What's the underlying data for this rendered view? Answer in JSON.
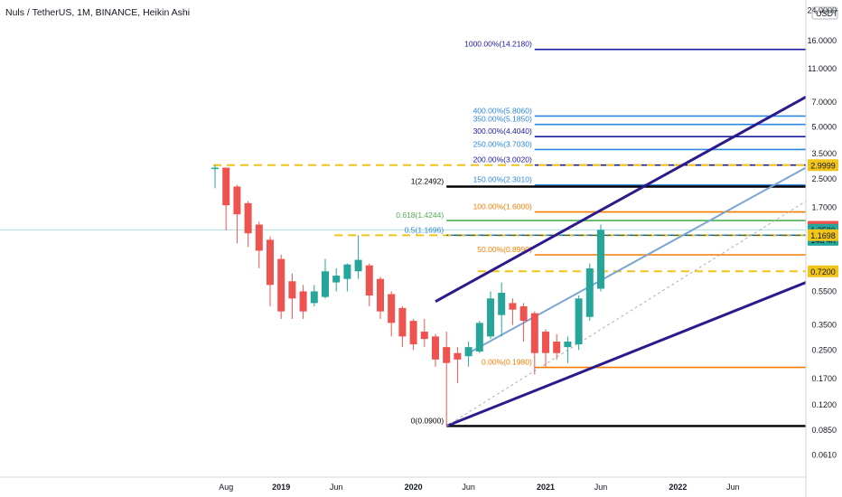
{
  "chart_title": "Nuls / TetherUS, 1M, BINANCE, Heikin Ashi",
  "currency_label": "USDT",
  "colors": {
    "up": "#26a69a",
    "down": "#ef5350",
    "yellow_dash": "#f0c419",
    "navy": "#1a1aa0",
    "steel_blue": "#79a6d2",
    "light_blue": "#2e86de",
    "orange": "#f57c00",
    "green": "#4caf50",
    "black": "#000000",
    "purple": "#2c1a8c",
    "price_line": "#a8e0e0"
  },
  "chart_data": {
    "type": "candlestick",
    "scale": "log",
    "ylim": [
      0.055,
      26
    ],
    "y_ticks": [
      {
        "value": 24.0,
        "label": "24.0000"
      },
      {
        "value": 16.0,
        "label": "16.0000"
      },
      {
        "value": 11.0,
        "label": "11.0000"
      },
      {
        "value": 7.0,
        "label": "7.0000"
      },
      {
        "value": 5.0,
        "label": "5.0000"
      },
      {
        "value": 3.5,
        "label": "3.5000"
      },
      {
        "value": 2.5,
        "label": "2.5000"
      },
      {
        "value": 1.7,
        "label": "1.7000"
      },
      {
        "value": 0.55,
        "label": "0.5500"
      },
      {
        "value": 0.35,
        "label": "0.3500"
      },
      {
        "value": 0.25,
        "label": "0.2500"
      },
      {
        "value": 0.17,
        "label": "0.1700"
      },
      {
        "value": 0.12,
        "label": "0.1200"
      },
      {
        "value": 0.085,
        "label": "0.0850"
      },
      {
        "value": 0.061,
        "label": "0.0610"
      }
    ],
    "x_ticks": [
      {
        "i": 1,
        "label": "Aug"
      },
      {
        "i": 6,
        "label": "2019"
      },
      {
        "i": 11,
        "label": "Jun"
      },
      {
        "i": 18,
        "label": "2020"
      },
      {
        "i": 23,
        "label": "Jun"
      },
      {
        "i": 30,
        "label": "2021"
      },
      {
        "i": 35,
        "label": "Jun"
      },
      {
        "i": 42,
        "label": "2022"
      },
      {
        "i": 47,
        "label": "Jun"
      }
    ],
    "candles": [
      {
        "o": 2.9,
        "h": 3.0,
        "l": 2.2,
        "c": 2.9
      },
      {
        "o": 2.9,
        "h": 2.9,
        "l": 1.25,
        "c": 1.75
      },
      {
        "o": 2.25,
        "h": 2.3,
        "l": 1.05,
        "c": 1.55
      },
      {
        "o": 1.8,
        "h": 1.85,
        "l": 1.0,
        "c": 1.2
      },
      {
        "o": 1.35,
        "h": 1.4,
        "l": 0.75,
        "c": 0.95
      },
      {
        "o": 1.1,
        "h": 1.15,
        "l": 0.45,
        "c": 0.6
      },
      {
        "o": 0.85,
        "h": 0.9,
        "l": 0.38,
        "c": 0.42
      },
      {
        "o": 0.63,
        "h": 0.7,
        "l": 0.38,
        "c": 0.5
      },
      {
        "o": 0.55,
        "h": 0.6,
        "l": 0.38,
        "c": 0.42
      },
      {
        "o": 0.47,
        "h": 0.6,
        "l": 0.45,
        "c": 0.55
      },
      {
        "o": 0.51,
        "h": 0.85,
        "l": 0.5,
        "c": 0.72
      },
      {
        "o": 0.62,
        "h": 0.75,
        "l": 0.55,
        "c": 0.68
      },
      {
        "o": 0.65,
        "h": 0.8,
        "l": 0.55,
        "c": 0.79
      },
      {
        "o": 0.72,
        "h": 1.17,
        "l": 0.65,
        "c": 0.84
      },
      {
        "o": 0.78,
        "h": 0.8,
        "l": 0.45,
        "c": 0.52
      },
      {
        "o": 0.65,
        "h": 0.67,
        "l": 0.38,
        "c": 0.42
      },
      {
        "o": 0.53,
        "h": 0.55,
        "l": 0.3,
        "c": 0.36
      },
      {
        "o": 0.44,
        "h": 0.45,
        "l": 0.26,
        "c": 0.3
      },
      {
        "o": 0.37,
        "h": 0.38,
        "l": 0.25,
        "c": 0.27
      },
      {
        "o": 0.32,
        "h": 0.38,
        "l": 0.26,
        "c": 0.29
      },
      {
        "o": 0.3,
        "h": 0.31,
        "l": 0.2,
        "c": 0.22
      },
      {
        "o": 0.26,
        "h": 0.32,
        "l": 0.09,
        "c": 0.21
      },
      {
        "o": 0.24,
        "h": 0.26,
        "l": 0.16,
        "c": 0.22
      },
      {
        "o": 0.23,
        "h": 0.28,
        "l": 0.2,
        "c": 0.26
      },
      {
        "o": 0.245,
        "h": 0.37,
        "l": 0.24,
        "c": 0.36
      },
      {
        "o": 0.3,
        "h": 0.55,
        "l": 0.29,
        "c": 0.5
      },
      {
        "o": 0.4,
        "h": 0.62,
        "l": 0.3,
        "c": 0.54
      },
      {
        "o": 0.47,
        "h": 0.5,
        "l": 0.35,
        "c": 0.43
      },
      {
        "o": 0.45,
        "h": 0.47,
        "l": 0.28,
        "c": 0.37
      },
      {
        "o": 0.41,
        "h": 0.42,
        "l": 0.18,
        "c": 0.24
      },
      {
        "o": 0.32,
        "h": 0.33,
        "l": 0.2,
        "c": 0.24
      },
      {
        "o": 0.28,
        "h": 0.31,
        "l": 0.22,
        "c": 0.24
      },
      {
        "o": 0.26,
        "h": 0.3,
        "l": 0.21,
        "c": 0.28
      },
      {
        "o": 0.27,
        "h": 0.52,
        "l": 0.25,
        "c": 0.5
      },
      {
        "o": 0.39,
        "h": 0.8,
        "l": 0.37,
        "c": 0.75
      },
      {
        "o": 0.57,
        "h": 1.35,
        "l": 0.55,
        "c": 1.258
      }
    ],
    "horizontal_levels": [
      {
        "value": 14.218,
        "label": "1000.00%(14.2180)",
        "color": "#1a1aa0",
        "style": "solid",
        "label_color": "#1a1aa0"
      },
      {
        "value": 5.806,
        "label": "400.00%(5.8060)",
        "color": "#2e86de",
        "style": "solid",
        "label_color": "#2e86de"
      },
      {
        "value": 5.185,
        "label": "350.00%(5.1850)",
        "color": "#2e86de",
        "style": "solid",
        "label_color": "#2e86de"
      },
      {
        "value": 4.404,
        "label": "300.00%(4.4040)",
        "color": "#1a1aa0",
        "style": "solid",
        "label_color": "#1a1aa0"
      },
      {
        "value": 3.703,
        "label": "250.00%(3.7030)",
        "color": "#2e86de",
        "style": "solid",
        "label_color": "#2e86de"
      },
      {
        "value": 3.002,
        "label": "200.00%(3.0020)",
        "color": "#1a1aa0",
        "style": "solid",
        "label_color": "#1a1aa0"
      },
      {
        "value": 2.301,
        "label": "150.00%(2.3010)",
        "color": "#2e86de",
        "style": "solid",
        "label_color": "#2e86de"
      },
      {
        "value": 2.2492,
        "label": "1(2.2492)",
        "color": "#000000",
        "style": "solid",
        "label_color": "#000000"
      },
      {
        "value": 1.6,
        "label": "100.00%(1.6000)",
        "color": "#f57c00",
        "style": "solid",
        "label_color": "#f57c00"
      },
      {
        "value": 1.4244,
        "label": "0.618(1.4244)",
        "color": "#4caf50",
        "style": "solid",
        "label_color": "#4caf50"
      },
      {
        "value": 1.1696,
        "label": "0.5(1.1696)",
        "color": "#2e86de",
        "style": "solid",
        "label_color": "#2e86de"
      },
      {
        "value": 0.899,
        "label": "50.00%(0.8990)",
        "color": "#f57c00",
        "style": "solid",
        "label_color": "#f57c00"
      },
      {
        "value": 0.198,
        "label": "0.00%(0.1980)",
        "color": "#f57c00",
        "style": "solid",
        "label_color": "#f57c00"
      },
      {
        "value": 0.09,
        "label": "0(0.0900)",
        "color": "#000000",
        "style": "solid",
        "label_color": "#000000"
      }
    ],
    "dashed_levels": [
      {
        "value": 2.9999,
        "from_i": 0
      },
      {
        "value": 1.1696,
        "from_i": 11
      },
      {
        "value": 0.72,
        "from_i": 24
      }
    ],
    "price_badges": [
      {
        "value": 2.9999,
        "label": "2.9999",
        "bg": "#f0c419",
        "fg": "#000000"
      },
      {
        "value": 1.3089,
        "label": "1.3089",
        "bg": "#ef5350",
        "fg": "#ffffff"
      },
      {
        "value": 1.258,
        "label": "1.2580",
        "sub": "14d 4h",
        "bg": "#26a69a",
        "fg": "#ffffff"
      },
      {
        "value": 1.1698,
        "label": "1.1698",
        "bg": "#f0c419",
        "fg": "#000000"
      },
      {
        "value": 0.72,
        "label": "0.7200",
        "bg": "#f0c419",
        "fg": "#000000"
      }
    ]
  }
}
